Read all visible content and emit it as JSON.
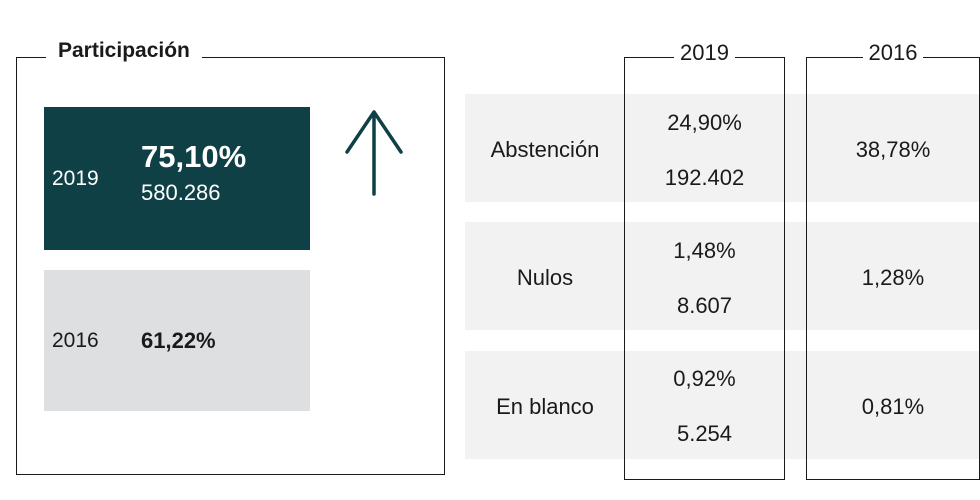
{
  "participacion": {
    "title": "Participación",
    "y2019": {
      "year": "2019",
      "percent": "75,10%",
      "count": "580.286"
    },
    "y2016": {
      "year": "2016",
      "percent": "61,22%"
    },
    "trend_icon": "arrow-up-icon"
  },
  "table": {
    "columns": [
      "2019",
      "2016"
    ],
    "rows": [
      {
        "label": "Abstención",
        "c2019_pct": "24,90%",
        "c2019_count": "192.402",
        "c2016_pct": "38,78%"
      },
      {
        "label": "Nulos",
        "c2019_pct": "1,48%",
        "c2019_count": "8.607",
        "c2016_pct": "1,28%"
      },
      {
        "label": "En blanco",
        "c2019_pct": "0,92%",
        "c2019_count": "5.254",
        "c2016_pct": "0,81%"
      }
    ]
  },
  "colors": {
    "box_2019": "#0f4046",
    "box_2016": "#dedfe0",
    "row_background": "#f2f2f2",
    "arrow": "#0f4046"
  },
  "chart_data": {
    "type": "table",
    "participation": [
      {
        "year": "2019",
        "percent": 75.1,
        "count": 580286
      },
      {
        "year": "2016",
        "percent": 61.22
      }
    ],
    "columns": [
      "2019",
      "2016"
    ],
    "rows": [
      {
        "label": "Abstención",
        "2019_percent": 24.9,
        "2019_count": 192402,
        "2016_percent": 38.78
      },
      {
        "label": "Nulos",
        "2019_percent": 1.48,
        "2019_count": 8607,
        "2016_percent": 1.28
      },
      {
        "label": "En blanco",
        "2019_percent": 0.92,
        "2019_count": 5254,
        "2016_percent": 0.81
      }
    ]
  }
}
